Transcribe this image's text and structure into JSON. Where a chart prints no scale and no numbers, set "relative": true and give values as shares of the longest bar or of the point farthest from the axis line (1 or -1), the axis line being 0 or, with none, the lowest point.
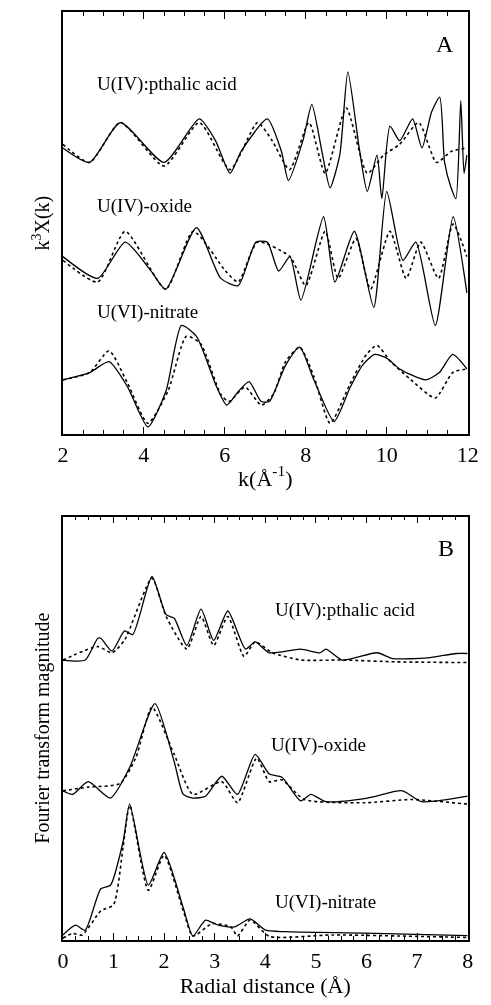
{
  "chart_data": [
    {
      "type": "line",
      "relative": true,
      "xlabel": "k(Å$^{-1}$)",
      "ylabel": "k$^{3}$X(k)",
      "xlim": [
        2,
        12
      ],
      "xticks": [
        2,
        4,
        6,
        8,
        10,
        12
      ],
      "annotations": [
        "A",
        "U(IV):pthalic acid",
        "U(IV)-oxide",
        "U(VI)-nitrate"
      ],
      "series": [
        {
          "color": "#000000",
          "line_style": "solid",
          "x": [
            2.0,
            2.66,
            3.42,
            4.5,
            5.37,
            5.77,
            6.13,
            6.4,
            7.05,
            7.4,
            7.57,
            7.93,
            8.15,
            8.4,
            8.6,
            8.84,
            9.04,
            9.32,
            9.52,
            9.76,
            9.88,
            10.08,
            10.32,
            10.64,
            10.87,
            11.11,
            11.31,
            11.43,
            11.59,
            11.71,
            11.83,
            11.91,
            11.98
          ],
          "values": [
            0.79,
            0.75,
            0.86,
            0.75,
            0.87,
            0.81,
            0.72,
            0.78,
            0.87,
            0.78,
            0.7,
            0.81,
            0.91,
            0.78,
            0.68,
            0.77,
            1.0,
            0.79,
            0.67,
            0.77,
            0.65,
            0.85,
            0.81,
            0.87,
            0.79,
            0.89,
            0.93,
            0.75,
            0.68,
            0.65,
            0.92,
            0.72,
            0.77
          ]
        },
        {
          "color": "#000000",
          "line_style": "dotted",
          "x": [
            2.0,
            2.66,
            3.42,
            4.5,
            5.37,
            6.13,
            6.81,
            7.17,
            7.6,
            8.08,
            8.48,
            9.0,
            9.52,
            9.92,
            10.32,
            10.79,
            11.23,
            11.59,
            11.98
          ],
          "values": [
            0.8,
            0.75,
            0.86,
            0.74,
            0.86,
            0.73,
            0.86,
            0.81,
            0.73,
            0.86,
            0.72,
            0.9,
            0.72,
            0.77,
            0.8,
            0.86,
            0.75,
            0.78,
            0.79
          ]
        },
        {
          "color": "#000000",
          "line_style": "solid",
          "x": [
            2.0,
            2.86,
            3.54,
            4.18,
            4.54,
            5.3,
            5.9,
            6.33,
            6.77,
            7.05,
            7.33,
            7.61,
            7.88,
            8.44,
            8.72,
            9.2,
            9.68,
            10.0,
            10.4,
            10.72,
            11.2,
            11.64,
            11.98
          ],
          "values": [
            0.49,
            0.43,
            0.53,
            0.45,
            0.4,
            0.57,
            0.43,
            0.41,
            0.53,
            0.53,
            0.45,
            0.49,
            0.37,
            0.6,
            0.42,
            0.56,
            0.35,
            0.67,
            0.48,
            0.53,
            0.3,
            0.6,
            0.39
          ]
        },
        {
          "color": "#000000",
          "line_style": "dotted",
          "x": [
            2.0,
            2.86,
            3.54,
            4.54,
            5.22,
            6.02,
            6.33,
            6.81,
            7.61,
            8.0,
            8.48,
            8.8,
            9.24,
            9.6,
            10.08,
            10.48,
            10.84,
            11.28,
            11.64,
            11.98
          ],
          "values": [
            0.48,
            0.42,
            0.56,
            0.4,
            0.56,
            0.45,
            0.42,
            0.53,
            0.49,
            0.41,
            0.56,
            0.43,
            0.54,
            0.4,
            0.56,
            0.43,
            0.53,
            0.43,
            0.58,
            0.49
          ]
        },
        {
          "color": "#000000",
          "line_style": "solid",
          "x": [
            2.0,
            2.66,
            3.14,
            3.6,
            4.1,
            4.55,
            4.93,
            5.3,
            5.8,
            6.05,
            6.35,
            6.6,
            6.9,
            7.1,
            7.5,
            7.85,
            8.2,
            8.7,
            9.1,
            9.4,
            9.7,
            10.0,
            10.32,
            10.96,
            11.3,
            11.63,
            11.98
          ],
          "values": [
            0.15,
            0.17,
            0.2,
            0.13,
            0.02,
            0.12,
            0.3,
            0.27,
            0.13,
            0.08,
            0.12,
            0.145,
            0.09,
            0.09,
            0.19,
            0.24,
            0.15,
            0.035,
            0.13,
            0.19,
            0.22,
            0.21,
            0.18,
            0.15,
            0.17,
            0.22,
            0.18
          ]
        },
        {
          "color": "#000000",
          "line_style": "dotted",
          "x": [
            2.0,
            2.66,
            3.14,
            3.6,
            4.1,
            4.6,
            5.05,
            5.4,
            5.9,
            6.1,
            6.5,
            6.9,
            7.2,
            7.5,
            7.85,
            8.2,
            8.6,
            9.1,
            9.5,
            9.76,
            10.1,
            10.6,
            11.2,
            11.63,
            11.98
          ],
          "values": [
            0.15,
            0.17,
            0.23,
            0.14,
            0.03,
            0.12,
            0.27,
            0.25,
            0.11,
            0.09,
            0.13,
            0.08,
            0.11,
            0.2,
            0.24,
            0.16,
            0.03,
            0.14,
            0.22,
            0.245,
            0.2,
            0.15,
            0.1,
            0.17,
            0.18
          ]
        }
      ]
    },
    {
      "type": "line",
      "relative": true,
      "xlabel": "Radial distance (Å)",
      "ylabel": "Fourier transform magnitude",
      "xlim": [
        0,
        8
      ],
      "xticks": [
        0,
        1,
        2,
        3,
        4,
        5,
        6,
        7,
        8
      ],
      "annotations": [
        "B",
        "U(IV):pthalic acid",
        "U(IV)-oxide",
        "U(VI)-nitrate"
      ],
      "series": [
        {
          "color": "#000000",
          "line_style": "solid",
          "x": [
            0,
            0.44,
            0.69,
            0.75,
            0.97,
            1.22,
            1.38,
            1.76,
            2.04,
            2.2,
            2.45,
            2.73,
            2.98,
            3.26,
            3.61,
            3.8,
            4.08,
            4.7,
            5.08,
            5.2,
            5.52,
            6.21,
            6.52,
            7.21,
            7.78,
            8
          ],
          "values": [
            0.77,
            0.77,
            0.83,
            0.83,
            0.795,
            0.85,
            0.84,
            1.0,
            0.895,
            0.885,
            0.81,
            0.91,
            0.824,
            0.905,
            0.8,
            0.82,
            0.79,
            0.8,
            0.79,
            0.8,
            0.77,
            0.79,
            0.774,
            0.776,
            0.788,
            0.788
          ]
        },
        {
          "color": "#000000",
          "line_style": "dotted",
          "x": [
            0,
            0.69,
            0.97,
            1.22,
            1.76,
            2.04,
            2.45,
            2.73,
            2.98,
            3.26,
            3.58,
            3.8,
            4.14,
            4.7,
            5.52,
            6.59,
            8
          ],
          "values": [
            0.77,
            0.807,
            0.79,
            0.825,
            0.995,
            0.89,
            0.8,
            0.89,
            0.81,
            0.89,
            0.78,
            0.82,
            0.79,
            0.77,
            0.77,
            0.765,
            0.763
          ]
        },
        {
          "color": "#000000",
          "line_style": "solid",
          "x": [
            0,
            0.19,
            0.5,
            0.94,
            1.32,
            1.82,
            2.2,
            2.38,
            2.57,
            2.82,
            3.14,
            3.45,
            3.8,
            4.08,
            4.33,
            4.7,
            4.9,
            5.2,
            6.02,
            6.71,
            7.09,
            8
          ],
          "values": [
            0.41,
            0.4,
            0.435,
            0.39,
            0.474,
            0.65,
            0.49,
            0.4,
            0.39,
            0.395,
            0.45,
            0.4,
            0.51,
            0.456,
            0.447,
            0.382,
            0.4,
            0.38,
            0.39,
            0.41,
            0.38,
            0.395
          ]
        },
        {
          "color": "#000000",
          "line_style": "dotted",
          "x": [
            0,
            0.5,
            1.13,
            1.44,
            1.76,
            2.2,
            2.57,
            3.14,
            3.45,
            3.83,
            4.08,
            4.33,
            4.77,
            5.96,
            6.9,
            8
          ],
          "values": [
            0.41,
            0.42,
            0.43,
            0.5,
            0.64,
            0.51,
            0.4,
            0.435,
            0.377,
            0.5,
            0.435,
            0.44,
            0.386,
            0.377,
            0.386,
            0.373
          ]
        },
        {
          "color": "#000000",
          "line_style": "solid",
          "x": [
            0,
            0.25,
            0.44,
            0.75,
            0.94,
            1.19,
            1.32,
            1.69,
            2.0,
            2.38,
            2.57,
            2.82,
            3.07,
            3.39,
            3.7,
            4.01,
            4.39,
            5.96,
            8
          ],
          "values": [
            0.013,
            0.04,
            0.026,
            0.14,
            0.15,
            0.27,
            0.373,
            0.15,
            0.24,
            0.087,
            0.01,
            0.054,
            0.04,
            0.035,
            0.057,
            0.026,
            0.022,
            0.018,
            0.011
          ]
        },
        {
          "color": "#000000",
          "line_style": "dotted",
          "x": [
            0,
            0.19,
            0.38,
            0.75,
            1.0,
            1.19,
            1.32,
            1.69,
            2.0,
            2.38,
            2.57,
            2.95,
            3.32,
            3.45,
            3.7,
            4.08,
            5.33,
            8
          ],
          "values": [
            0.004,
            0.017,
            0.013,
            0.079,
            0.096,
            0.255,
            0.37,
            0.136,
            0.232,
            0.079,
            0.01,
            0.044,
            0.035,
            0.01,
            0.054,
            0.009,
            0.013,
            0.006
          ]
        }
      ]
    }
  ]
}
